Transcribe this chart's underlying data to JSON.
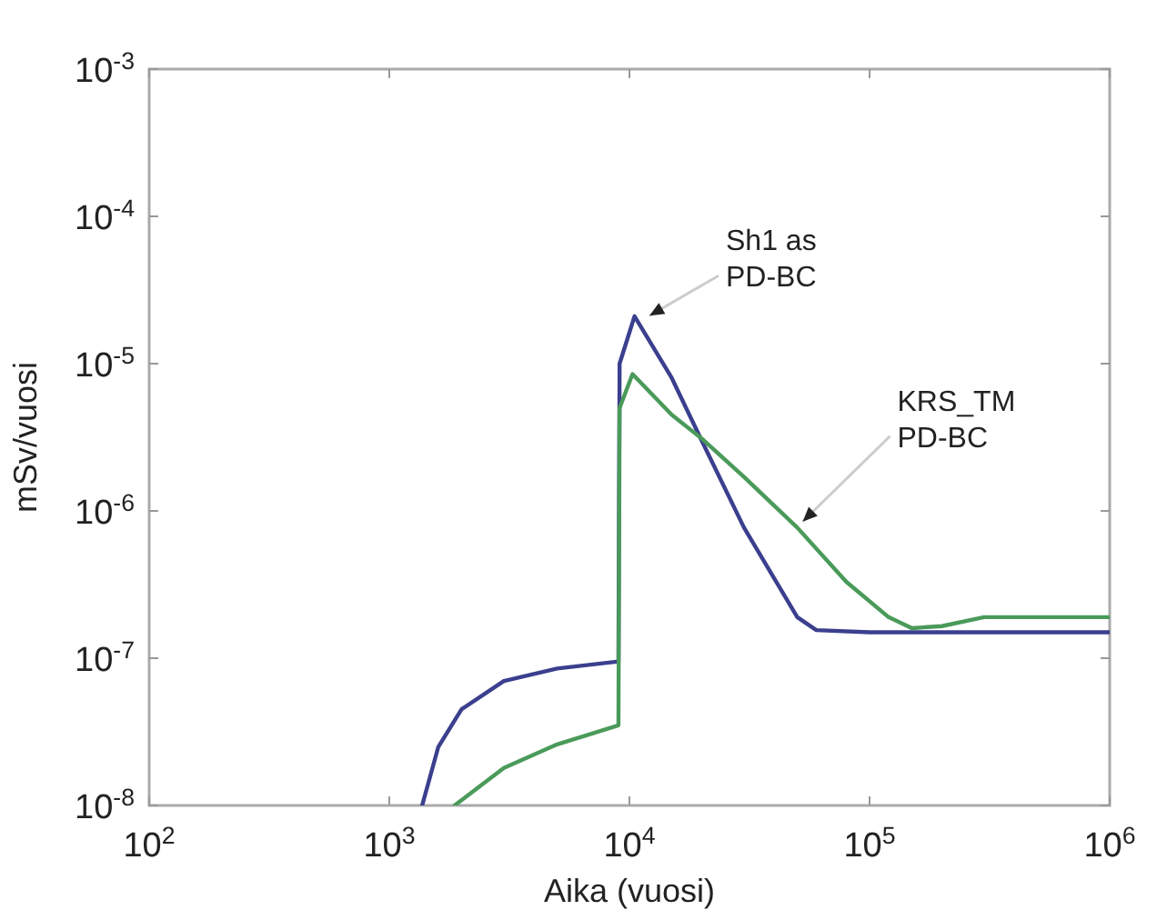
{
  "chart_data": {
    "type": "line",
    "xlabel": "Aika (vuosi)",
    "ylabel": "mSv/vuosi",
    "log": "xy",
    "grid": false,
    "marker": "none",
    "line_style": "solid",
    "xlim": [
      100,
      1000000
    ],
    "ylim": [
      1e-08,
      0.001
    ],
    "xticks": [
      {
        "value": 100,
        "label": "10$^{2}$"
      },
      {
        "value": 1000,
        "label": "10$^{3}$"
      },
      {
        "value": 10000,
        "label": "10$^{4}$"
      },
      {
        "value": 100000,
        "label": "10$^{5}$"
      },
      {
        "value": 1000000,
        "label": "10$^{6}$"
      }
    ],
    "yticks": [
      {
        "value": 1e-08,
        "label": "10$^{-8}$"
      },
      {
        "value": 1e-07,
        "label": "10$^{-7}$"
      },
      {
        "value": 1e-06,
        "label": "10$^{-6}$"
      },
      {
        "value": 1e-05,
        "label": "10$^{-5}$"
      },
      {
        "value": 0.0001,
        "label": "10$^{-4}$"
      },
      {
        "value": 0.001,
        "label": "10$^{-3}$"
      }
    ],
    "series": [
      {
        "color": "#3b3f8e",
        "x": [
          1370,
          1600,
          2000,
          3000,
          5000,
          9000,
          9100,
          10500,
          15000,
          20000,
          30000,
          50000,
          60000,
          100000,
          300000,
          1000000
        ],
        "values": [
          1e-08,
          2.5e-08,
          4.5e-08,
          7e-08,
          8.5e-08,
          9.5e-08,
          1e-05,
          2.1e-05,
          8e-06,
          3e-06,
          7.7e-07,
          1.9e-07,
          1.55e-07,
          1.5e-07,
          1.5e-07,
          1.5e-07
        ]
      },
      {
        "color": "#4a9a5a",
        "x": [
          1870,
          3000,
          5000,
          9000,
          9100,
          10300,
          15000,
          20000,
          30000,
          50000,
          80000,
          120000,
          150000,
          200000,
          300000,
          1000000
        ],
        "values": [
          1e-08,
          1.8e-08,
          2.6e-08,
          3.5e-08,
          5e-06,
          8.5e-06,
          4.5e-06,
          3.1e-06,
          1.7e-06,
          7.7e-07,
          3.3e-07,
          1.9e-07,
          1.6e-07,
          1.65e-07,
          1.9e-07,
          1.9e-07
        ]
      }
    ],
    "annotations": [
      {
        "text": "Sh1 as\nPD-BC",
        "x": 11500,
        "y": 2e-05
      },
      {
        "text": "KRS_TM\nPD-BC",
        "x": 50000,
        "y": 8e-07
      }
    ]
  }
}
